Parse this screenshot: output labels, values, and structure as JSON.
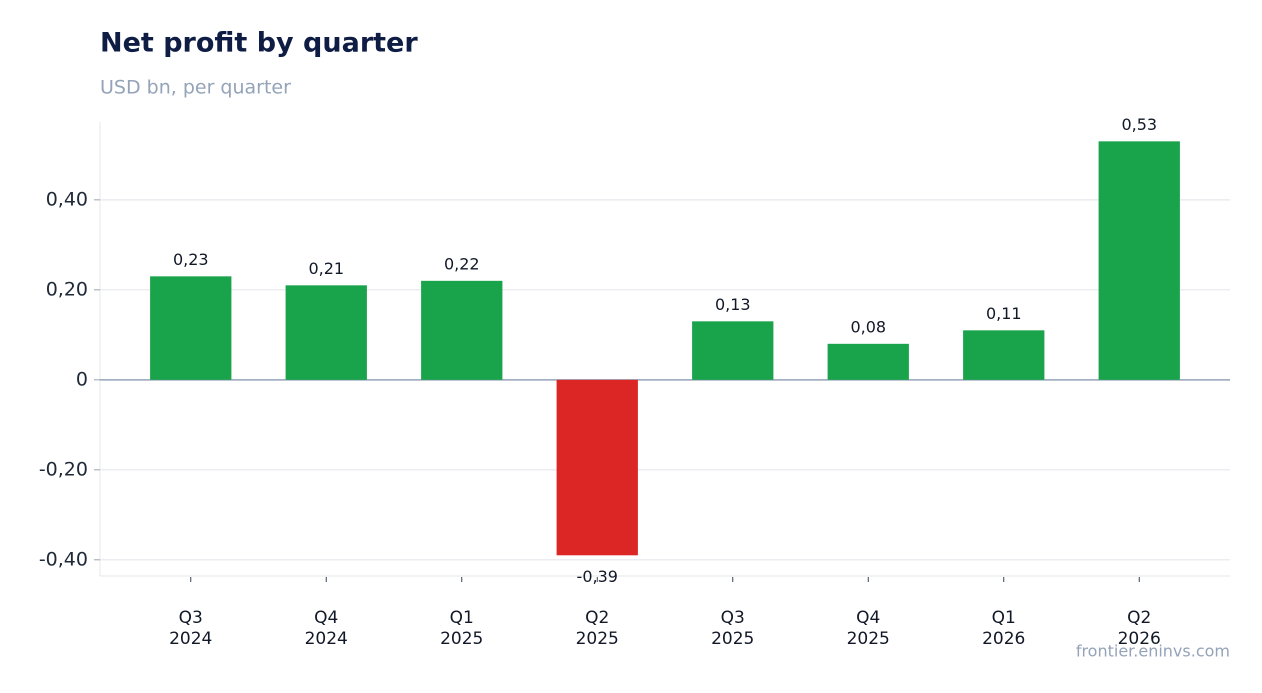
{
  "chart_data": {
    "type": "bar",
    "title": "Net profit by quarter",
    "subtitle": "USD bn, per quarter",
    "source": "frontier.eninvs.com",
    "categories": [
      [
        "Q3",
        "2024"
      ],
      [
        "Q4",
        "2024"
      ],
      [
        "Q1",
        "2025"
      ],
      [
        "Q2",
        "2025"
      ],
      [
        "Q3",
        "2025"
      ],
      [
        "Q4",
        "2025"
      ],
      [
        "Q1",
        "2026"
      ],
      [
        "Q2",
        "2026"
      ]
    ],
    "values": [
      0.23,
      0.21,
      0.22,
      -0.39,
      0.13,
      0.08,
      0.11,
      0.53
    ],
    "value_labels": [
      "0,23",
      "0,21",
      "0,22",
      "-0,39",
      "0,13",
      "0,08",
      "0,11",
      "0,53"
    ],
    "colors": [
      "#19a34a",
      "#19a34a",
      "#19a34a",
      "#dc2626",
      "#19a34a",
      "#19a34a",
      "#19a34a",
      "#19a34a"
    ],
    "ylim": [
      -0.436,
      0.573
    ],
    "yticks": [
      {
        "value": -0.4,
        "label": "-0,40"
      },
      {
        "value": -0.2,
        "label": "-0,20"
      },
      0,
      {
        "value": 0.2,
        "label": "0,20"
      },
      {
        "value": 0.4,
        "label": "0,40"
      }
    ],
    "grid": true
  }
}
